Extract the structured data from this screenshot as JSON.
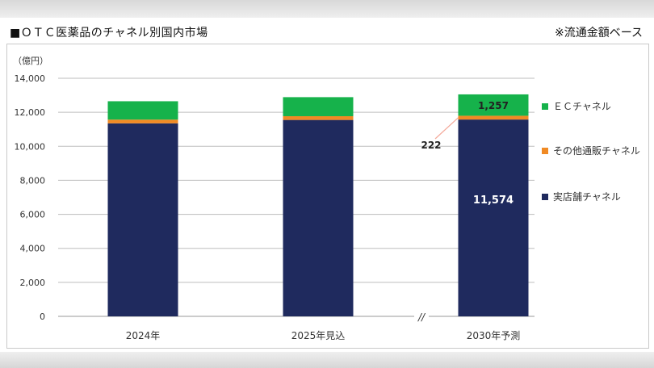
{
  "header": {
    "title": "■ＯＴＣ医薬品のチャネル別国内市場",
    "note": "※流通金額ベース"
  },
  "chart_data": {
    "type": "bar",
    "stacked": true,
    "unit_label": "（億円）",
    "categories": [
      "2024年",
      "2025年見込",
      "2030年予測"
    ],
    "ylim": [
      0,
      14000
    ],
    "yticks": [
      "0",
      "2,000",
      "4,000",
      "6,000",
      "8,000",
      "10,000",
      "12,000",
      "14,000"
    ],
    "ytick_values": [
      0,
      2000,
      4000,
      6000,
      8000,
      10000,
      12000,
      14000
    ],
    "grid": true,
    "legend_position": "right",
    "axis_break_between": [
      "2025年見込",
      "2030年予測"
    ],
    "axis_break_label": "//",
    "series": [
      {
        "name": "実店舗チャネル",
        "color": "#1f2a5e",
        "values": [
          11350,
          11550,
          11574
        ]
      },
      {
        "name": "その他通販チャネル",
        "color": "#f08a24",
        "values": [
          220,
          220,
          222
        ]
      },
      {
        "name": "ＥＣチャネル",
        "color": "#16b24b",
        "values": [
          1080,
          1120,
          1257
        ]
      }
    ],
    "legend_order": [
      "ＥＣチャネル",
      "その他通販チャネル",
      "実店舗チャネル"
    ],
    "data_labels": [
      {
        "category": "2030年予測",
        "series": "ＥＣチャネル",
        "text": "1,257"
      },
      {
        "category": "2030年予測",
        "series": "その他通販チャネル",
        "text": "222"
      },
      {
        "category": "2030年予測",
        "series": "実店舗チャネル",
        "text": "11,574"
      }
    ]
  }
}
